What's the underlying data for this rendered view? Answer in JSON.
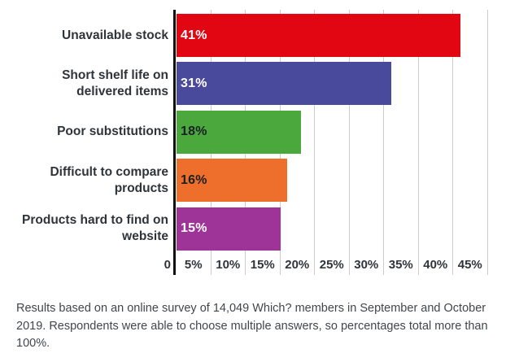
{
  "chart_data": {
    "type": "bar",
    "orientation": "horizontal",
    "title": "",
    "xlabel": "",
    "ylabel": "",
    "xlim": [
      0,
      45
    ],
    "grid": true,
    "categories": [
      "Unavailable stock",
      "Short shelf life on delivered items",
      "Poor substitutions",
      "Difficult to compare products",
      "Products hard to find on website"
    ],
    "category_lines": [
      [
        "Unavailable stock"
      ],
      [
        "Short shelf life on",
        "delivered items"
      ],
      [
        "Poor substitutions"
      ],
      [
        "Difficult to compare",
        "products"
      ],
      [
        "Products hard to find on",
        "website"
      ]
    ],
    "values": [
      41,
      31,
      18,
      16,
      15
    ],
    "value_labels": [
      "41%",
      "31%",
      "18%",
      "16%",
      "15%"
    ],
    "bar_colors": [
      "#e20613",
      "#4a4a9c",
      "#4ba83d",
      "#ed6f2b",
      "#9e3498"
    ],
    "value_label_colors": [
      "#ffffff",
      "#ffffff",
      "#1a2026",
      "#1a2026",
      "#ffffff"
    ],
    "x_tick_zero": "0",
    "x_tick_bands": [
      "5%",
      "10%",
      "15%",
      "20%",
      "25%",
      "30%",
      "35%",
      "40%",
      "45%"
    ],
    "colors": {
      "axis": "#101010",
      "gridline": "#cccccc",
      "category_text": "#2e343a",
      "tick_text": "#2e343a",
      "footer_text": "#40464b",
      "background": "#ffffff"
    }
  },
  "footer": {
    "text": "Results based on an online survey of 14,049 Which? members in September and October 2019. Respondents were able to choose multiple answers, so percentages total more than 100%."
  }
}
